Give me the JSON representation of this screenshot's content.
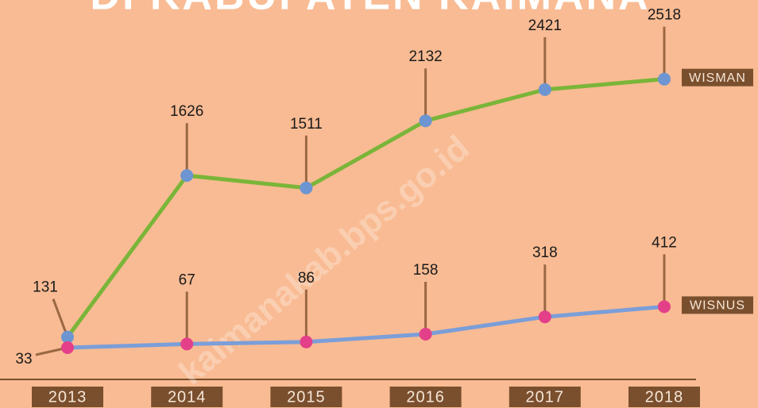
{
  "chart_data": {
    "type": "line",
    "title": "DI KABUPATEN KAIMANA",
    "categories": [
      "2013",
      "2014",
      "2015",
      "2016",
      "2017",
      "2018"
    ],
    "series": [
      {
        "name": "WISMAN",
        "color": "#7ab539",
        "marker_color": "#6c95d1",
        "values": [
          131,
          1626,
          1511,
          2132,
          2421,
          2518
        ]
      },
      {
        "name": "WISNUS",
        "color": "#7b9ed8",
        "marker_color": "#e4408a",
        "values": [
          33,
          67,
          86,
          158,
          318,
          412
        ]
      }
    ],
    "ylim": [
      0,
      3250
    ]
  },
  "watermark": "kaimanakab.bps.go.id"
}
